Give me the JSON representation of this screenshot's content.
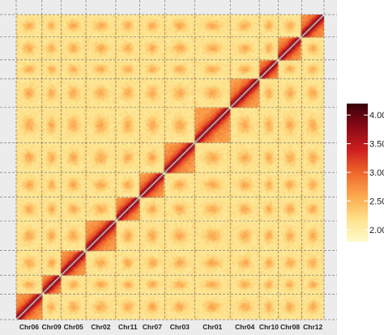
{
  "chart_data": {
    "type": "heatmap",
    "title": "",
    "xlabel": "",
    "ylabel": "",
    "chromosomes": [
      {
        "name": "Chr06",
        "size": 31
      },
      {
        "name": "Chr09",
        "size": 23
      },
      {
        "name": "Chr05",
        "size": 30
      },
      {
        "name": "Chr02",
        "size": 36
      },
      {
        "name": "Chr11",
        "size": 29
      },
      {
        "name": "Chr07",
        "size": 30
      },
      {
        "name": "Chr03",
        "size": 36
      },
      {
        "name": "Chr01",
        "size": 43
      },
      {
        "name": "Chr04",
        "size": 35
      },
      {
        "name": "Chr10",
        "size": 23
      },
      {
        "name": "Chr08",
        "size": 28
      },
      {
        "name": "Chr12",
        "size": 27
      }
    ],
    "axis_position": "bottom",
    "grid": "dashed",
    "colorbar": {
      "min": 1.8,
      "max": 4.2,
      "ticks": [
        "2.00",
        "2.50",
        "3.00",
        "3.50",
        "4.00"
      ],
      "tick_values": [
        2.0,
        2.5,
        3.0,
        3.5,
        4.0
      ],
      "colors": [
        "#fffbcf",
        "#fde28a",
        "#fca94f",
        "#f06a2c",
        "#cf2020",
        "#8c0a16",
        "#3d0008"
      ],
      "position": "right"
    },
    "diagonal_color": "#ffffff"
  }
}
